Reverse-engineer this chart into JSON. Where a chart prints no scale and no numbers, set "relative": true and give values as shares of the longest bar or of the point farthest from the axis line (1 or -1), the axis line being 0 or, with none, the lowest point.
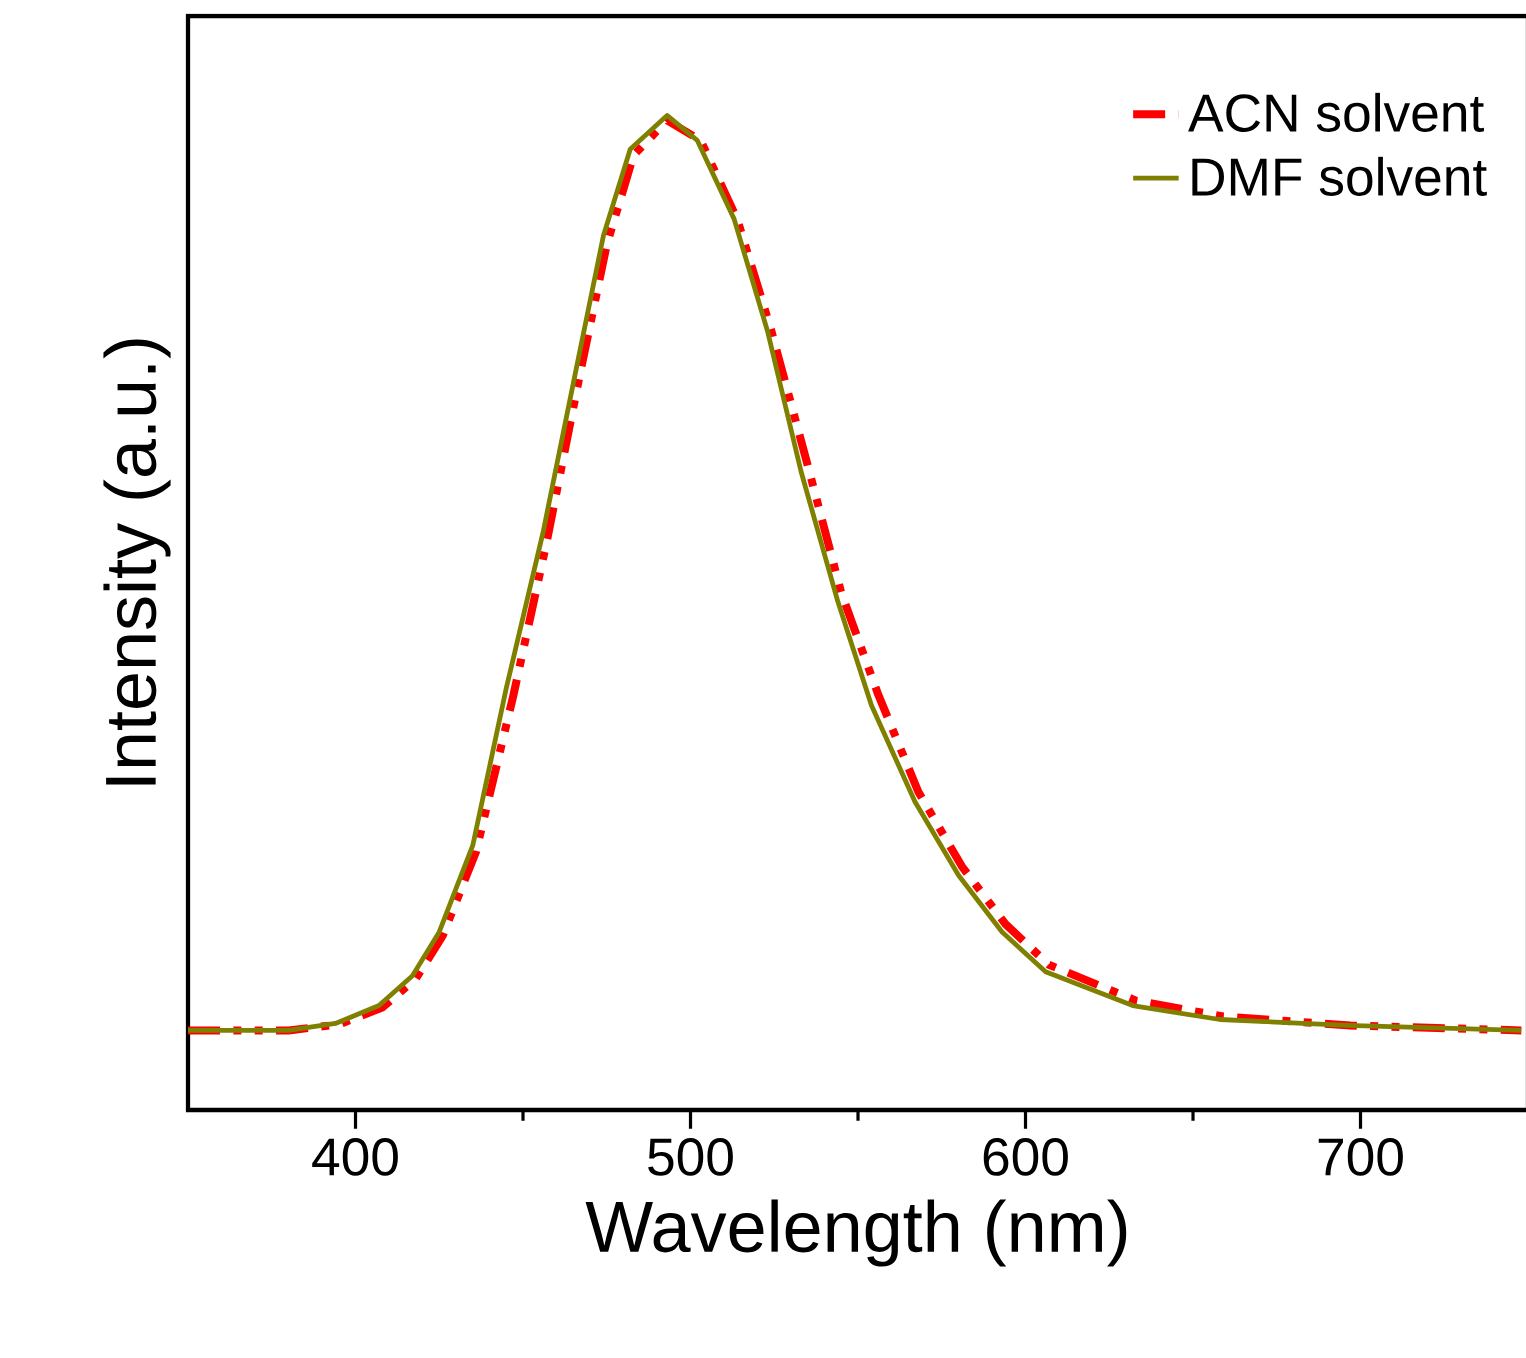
{
  "chart_data": {
    "type": "line",
    "xlabel": "Wavelength (nm)",
    "ylabel": "Intensity (a.u.)",
    "relative": true,
    "xlim": [
      350,
      750
    ],
    "xticks": [
      400,
      500,
      600,
      700
    ],
    "legend": "top right",
    "series": [
      {
        "name": "ACN solvent",
        "color": "#ff0000",
        "line_style": "dashed",
        "x": [
          350,
          380,
          395,
          408,
          418,
          426,
          436,
          447,
          457,
          467,
          475,
          483,
          493,
          503,
          514,
          524,
          535,
          545,
          556,
          568,
          581,
          594,
          607,
          633,
          659,
          697,
          748
        ],
        "values": [
          0.08,
          0.08,
          0.086,
          0.103,
          0.132,
          0.175,
          0.26,
          0.415,
          0.57,
          0.74,
          0.87,
          0.96,
          0.995,
          0.975,
          0.895,
          0.785,
          0.648,
          0.52,
          0.418,
          0.32,
          0.245,
          0.187,
          0.146,
          0.11,
          0.094,
          0.085,
          0.08
        ]
      },
      {
        "name": "DMF solvent",
        "color": "#808000",
        "line_style": "solid",
        "x": [
          350,
          380,
          394,
          407,
          417,
          425,
          435,
          445,
          456,
          466,
          474,
          482,
          493,
          502,
          513,
          523,
          533,
          544,
          554,
          567,
          580,
          593,
          606,
          632,
          658,
          696,
          748
        ],
        "values": [
          0.08,
          0.08,
          0.087,
          0.105,
          0.135,
          0.179,
          0.266,
          0.424,
          0.581,
          0.747,
          0.879,
          0.966,
          1,
          0.975,
          0.896,
          0.783,
          0.642,
          0.511,
          0.407,
          0.31,
          0.236,
          0.179,
          0.139,
          0.105,
          0.091,
          0.085,
          0.08
        ]
      }
    ]
  }
}
